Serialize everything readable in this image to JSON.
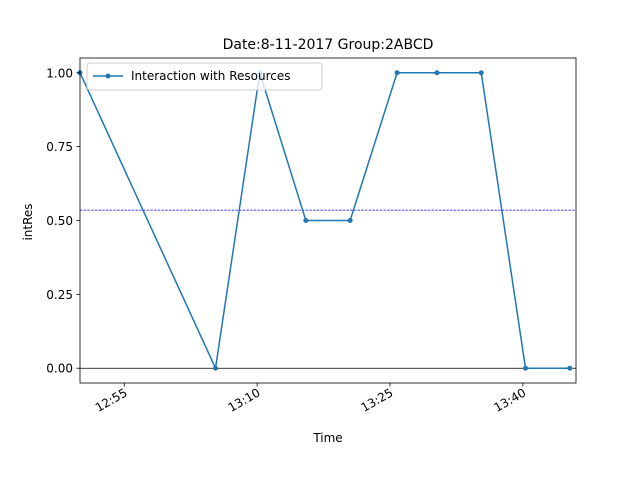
{
  "chart_data": {
    "type": "line",
    "title": "Date:8-11-2017  Group:2ABCD",
    "xlabel": "Time",
    "ylabel": "intRes",
    "x_unit": "minutes since 00:00",
    "xlim": [
      770,
      826
    ],
    "ylim": [
      -0.05,
      1.05
    ],
    "x_ticks": [
      {
        "value": 775,
        "label": "12:55"
      },
      {
        "value": 790,
        "label": "13:10"
      },
      {
        "value": 805,
        "label": "13:25"
      },
      {
        "value": 820,
        "label": "13:40"
      }
    ],
    "y_ticks": [
      {
        "value": 0.0,
        "label": "0.00"
      },
      {
        "value": 0.25,
        "label": "0.25"
      },
      {
        "value": 0.5,
        "label": "0.50"
      },
      {
        "value": 0.75,
        "label": "0.75"
      },
      {
        "value": 1.0,
        "label": "1.00"
      }
    ],
    "series": [
      {
        "name": "Interaction with Resources",
        "color": "#1f77b4",
        "x": [
          770,
          785.3,
          790.3,
          795.5,
          800.5,
          805.8,
          810.3,
          815.3,
          820.3,
          825.3
        ],
        "y": [
          1.0,
          0.0,
          1.0,
          0.5,
          0.5,
          1.0,
          1.0,
          1.0,
          0.0,
          0.0
        ]
      }
    ],
    "reference_lines": [
      {
        "type": "horizontal",
        "y": 0.535,
        "color": "#0000ff",
        "style": "dashed"
      },
      {
        "type": "horizontal",
        "y": 0.0,
        "color": "#000000",
        "style": "solid"
      }
    ],
    "legend": {
      "position": "top-left",
      "entries": [
        "Interaction with Resources"
      ]
    },
    "grid": false
  }
}
